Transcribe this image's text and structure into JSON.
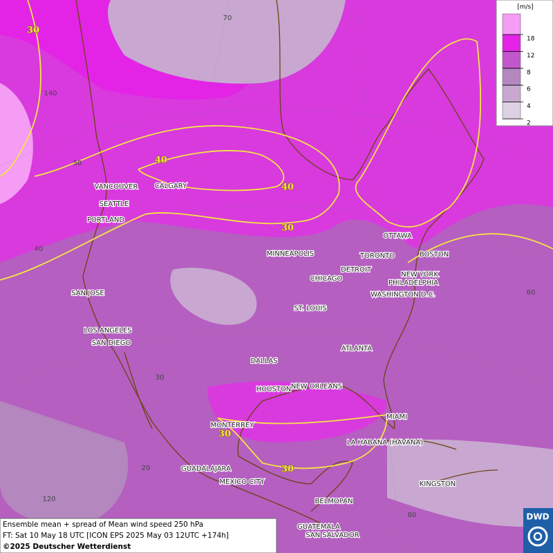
{
  "legend": {
    "unit": "[m/s]",
    "ticks": [
      2,
      4,
      6,
      8,
      12,
      18
    ],
    "colors": [
      "#ddd0e2",
      "#c8a8d0",
      "#b487be",
      "#c256cc",
      "#e324e6",
      "#f59cf5"
    ]
  },
  "cities": [
    "VANCOUVER",
    "CALGARY",
    "SEATTLE",
    "PORTLAND",
    "MINNEAPOLIS",
    "TORONTO",
    "OTTAWA",
    "DETROIT",
    "CHICAGO",
    "BOSTON",
    "NEW YORK",
    "PHILADELPHIA",
    "WASHINGTON D.C.",
    "SAN JOSE",
    "ST. LOUIS",
    "LOS ANGELES",
    "SAN DIEGO",
    "ATLANTA",
    "DALLAS",
    "HOUSTON",
    "NEW ORLEANS",
    "MIAMI",
    "MONTERREY",
    "LA HABANA (HAVANA)",
    "GUADALAJARA",
    "MEXICO CITY",
    "KINGSTON",
    "BELMOPAN",
    "GUATEMALA",
    "SAN SALVADOR"
  ],
  "contour_labels": [
    "30",
    "40",
    "40",
    "30",
    "30",
    "30"
  ],
  "grid_labels": [
    "70",
    "140",
    "50",
    "40",
    "60",
    "30",
    "20",
    "120",
    "80"
  ],
  "footer": {
    "line1": "Ensemble mean + spread of Mean wind speed 250 hPa",
    "line2": "FT: Sat 10 May 18 UTC [ICON EPS 2025 May 03 12UTC +174h]",
    "line3": "©2025 Deutscher Wetterdienst"
  },
  "logo": "DWD"
}
